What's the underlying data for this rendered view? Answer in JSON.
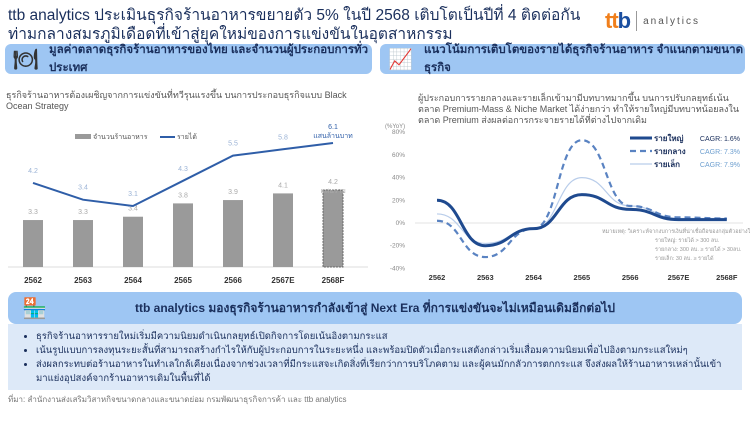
{
  "title": "ttb analytics ประเมินธุรกิจร้านอาหารขยายตัว 5% ในปี 2568 เติบโตเป็นปีที่ 4 ติดต่อกัน ท่ามกลางสมรภูมิเดือดที่เข้าสู่ยุคใหม่ของการแข่งขันในอุตสาหกรรม",
  "logo": {
    "mark_a": "tt",
    "mark_b": "b",
    "word": "analytics"
  },
  "left": {
    "header": "มูลค่าตลาดธุรกิจร้านอาหารของไทย และจำนวนผู้ประกอบการทั่วประเทศ",
    "subtitle": "ธุรกิจร้านอาหารต้องเผชิญจากการแข่งขันที่ทวีรุนแรงขึ้น บนการประกอบธุรกิจแบบ Black Ocean Strategy"
  },
  "right": {
    "header": "แนวโน้มการเติบโตของรายได้ธุรกิจร้านอาหาร จำแนกตามขนาดธุรกิจ",
    "subtitle": "ผู้ประกอบการรายกลางและรายเล็กเข้ามามีบทบาทมากขึ้น บนการปรับกลยุทธ์เน้นตลาด Premium-Mass & Niche Market ได้ง่ายกว่า ทำให้รายใหญ่มีบทบาทน้อยลงในตลาด Premium ส่งผลต่อการกระจายรายได้ที่ต่างไปจากเดิม"
  },
  "chart_data": [
    {
      "type": "bar",
      "title": "มูลค่าตลาดธุรกิจร้านอาหารของไทย และจำนวนผู้ประกอบการทั่วประเทศ",
      "categories": [
        "2562",
        "2563",
        "2564",
        "2565",
        "2566",
        "2567E",
        "2568F"
      ],
      "series": [
        {
          "name": "จำนวนร้านอาหาร",
          "type": "bar",
          "values": [
            3.3,
            3.3,
            3.4,
            3.8,
            3.9,
            4.1,
            4.2
          ],
          "unit": "แสนราย",
          "color": "#9a9a9a"
        },
        {
          "name": "รายได้",
          "type": "line",
          "values": [
            4.2,
            3.4,
            3.1,
            4.3,
            5.5,
            5.8,
            6.1
          ],
          "unit": "แสนล้านบาท",
          "color": "#2f5ea8"
        }
      ]
    },
    {
      "type": "line",
      "ylabel": "(%YoY)",
      "yticks": [
        "80%",
        "60%",
        "40%",
        "20%",
        "0%",
        "-20%",
        "-40%"
      ],
      "ylim": [
        -40,
        80
      ],
      "categories": [
        "2562",
        "2563",
        "2564",
        "2565",
        "2566",
        "2567E",
        "2568F"
      ],
      "series": [
        {
          "name": "รายใหญ่",
          "cagr": "CAGR: 1.6%",
          "values": [
            20,
            -20,
            -5,
            25,
            12,
            3,
            3
          ],
          "color": "#1f4a8f"
        },
        {
          "name": "รายกลาง",
          "cagr": "CAGR: 7.3%",
          "values": [
            2,
            -30,
            -5,
            73,
            15,
            5,
            4
          ],
          "color": "#5a83c2"
        },
        {
          "name": "รายเล็ก",
          "cagr": "CAGR: 7.9%",
          "values": [
            8,
            -18,
            -5,
            40,
            15,
            4,
            4
          ],
          "color": "#b9cdea"
        }
      ],
      "note": [
        "หมายเหตุ: วิเคราะห์จากงบการเงินที่น่าเชื่อถือของกลุ่มตัวอย่างในแต่ละกลุ่มตามขนาดธุรกิจ",
        "รายใหญ่: รายได้ > 300 ลบ.",
        "รายกลาง: 300 ลบ. ≥ รายได้ > 30ลบ.",
        "รายเล็ก: 30 ลบ. ≥ รายได้"
      ]
    }
  ],
  "bottom": {
    "header": "ttb analytics มองธุรกิจร้านอาหารกำลังเข้าสู่ Next Era ที่การแข่งขันจะไม่เหมือนเดิมอีกต่อไป",
    "bullets": [
      "ธุรกิจร้านอาหารรายใหม่เริ่มมีความนิยมดำเนินกลยุทธ์เปิดกิจการโดยเน้นอิงตามกระแส",
      "เน้นรูปแบบการลงทุนระยะสั้นที่สามารถสร้างกำไรให้กับผู้ประกอบการในระยะหนึ่ง และพร้อมปิดตัวเมื่อกระแสดังกล่าวเริ่มเสื่อมความนิยมเพื่อไปอิงตามกระแสใหม่ๆ",
      "ส่งผลกระทบต่อร้านอาหารในทำเลใกล้เคียงเนื่องจากช่วงเวลาที่มีกระแสจะเกิดสิ่งที่เรียกว่าการบริโภคตาม และผู้คนมักกลัวการตกกระแส จึงส่งผลให้ร้านอาหารเหล่านั้นเข้ามาแย่งอุปสงค์จากร้านอาหารเดิมในพื้นที่ได้"
    ]
  },
  "source": "ที่มา: สำนักงานส่งเสริมวิสาหกิจขนาดกลางและขนาดย่อม กรมพัฒนาธุรกิจการค้า และ ttb analytics"
}
